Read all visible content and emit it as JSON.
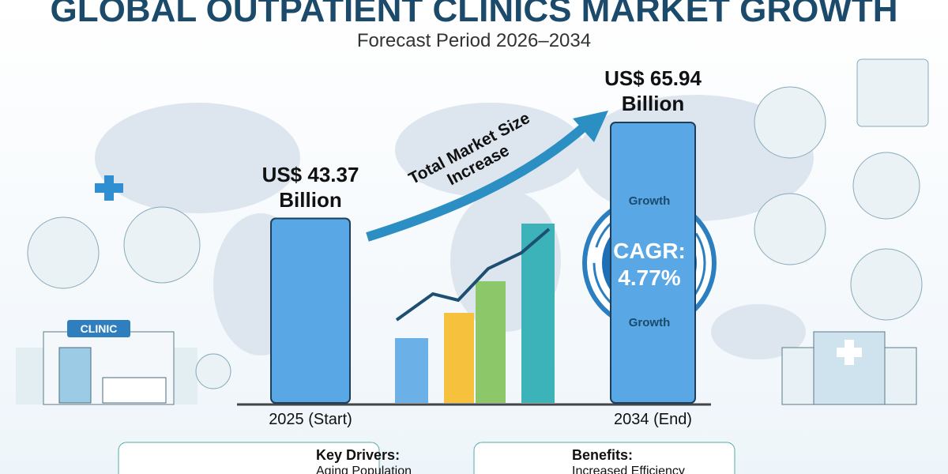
{
  "chart_data": {
    "type": "bar",
    "title": "GLOBAL OUTPATIENT CLINICS MARKET GROWTH",
    "subtitle": "Forecast Period 2026–2034",
    "annotation": "Total Market Size Increase",
    "categories": [
      "2025 (Start)",
      "2034 (End)"
    ],
    "values": [
      43.37,
      65.94
    ],
    "value_labels": [
      "US$ 43.37 Billion",
      "US$ 65.94 Billion"
    ],
    "color": "#5aa7e6",
    "badge": {
      "top": "Growth",
      "label": "CAGR:",
      "value": "4.77%",
      "bottom": "Growth"
    },
    "clinic_sign": "CLINIC",
    "panels": [
      {
        "title": "Key Drivers:",
        "text": "Aging Population"
      },
      {
        "title": "Benefits:",
        "text": "Increased Efficiency"
      }
    ]
  }
}
